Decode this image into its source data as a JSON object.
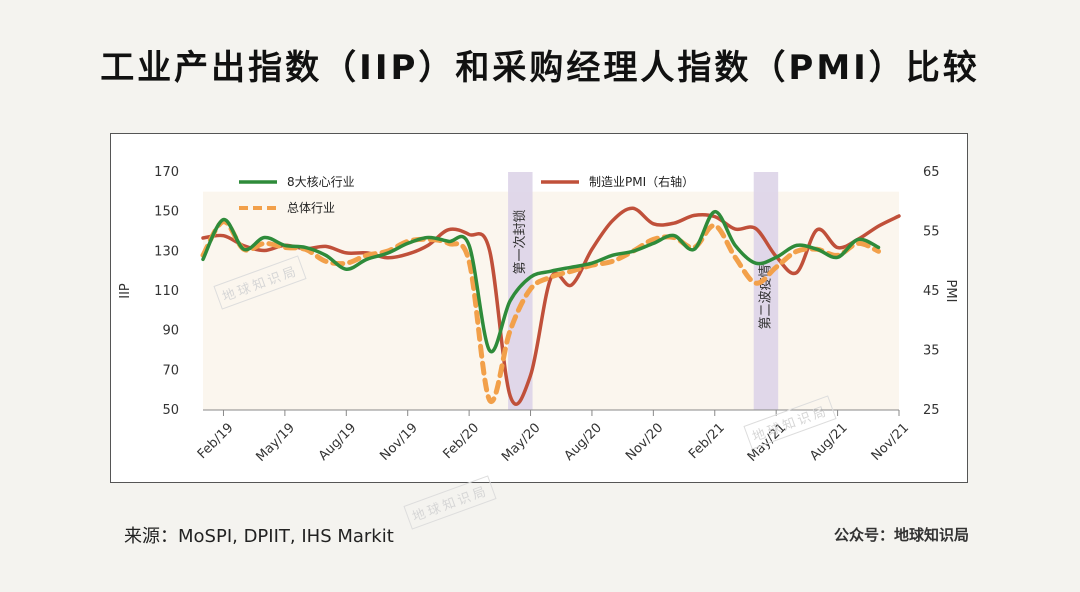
{
  "page": {
    "title": "工业产出指数（IIP）和采购经理人指数（PMI）比较",
    "source": "来源：MoSPI, DPIIT, IHS Markit",
    "account": "公众号：地球知识局",
    "watermark": "地球知识局"
  },
  "chart_data": {
    "type": "line",
    "x": [
      "Jan/19",
      "Feb/19",
      "Mar/19",
      "Apr/19",
      "May/19",
      "Jun/19",
      "Jul/19",
      "Aug/19",
      "Sep/19",
      "Oct/19",
      "Nov/19",
      "Dec/19",
      "Jan/20",
      "Feb/20",
      "Mar/20",
      "Apr/20",
      "May/20",
      "Jun/20",
      "Jul/20",
      "Aug/20",
      "Sep/20",
      "Oct/20",
      "Nov/20",
      "Dec/20",
      "Jan/21",
      "Feb/21",
      "Mar/21",
      "Apr/21",
      "May/21",
      "Jun/21",
      "Jul/21",
      "Aug/21",
      "Sep/21",
      "Oct/21",
      "Nov/21"
    ],
    "x_tick_labels": [
      "Feb/19",
      "May/19",
      "Aug/19",
      "Nov/19",
      "Feb/20",
      "May/20",
      "Aug/20",
      "Nov/20",
      "Feb/21",
      "May/21",
      "Aug/21",
      "Nov/21"
    ],
    "y_left": {
      "label": "IIP",
      "ticks": [
        50,
        70,
        90,
        110,
        130,
        150,
        170
      ],
      "range": [
        50,
        170
      ]
    },
    "y_right": {
      "label": "PMI",
      "ticks": [
        25,
        35,
        45,
        55,
        65
      ],
      "range": [
        25,
        65
      ]
    },
    "series": [
      {
        "name": "8大核心行业",
        "axis": "left",
        "color": "#2e8b3a",
        "style": "solid",
        "values": [
          126,
          146,
          131,
          137,
          133,
          132,
          128,
          121,
          126,
          129,
          134,
          137,
          135,
          133,
          80,
          105,
          117,
          120,
          122,
          124,
          128,
          130,
          134,
          138,
          131,
          150,
          133,
          124,
          127,
          133,
          131,
          127,
          136,
          132,
          null
        ]
      },
      {
        "name": "总体行业",
        "axis": "left",
        "color": "#f2a04a",
        "style": "dashed",
        "values": [
          128,
          145,
          131,
          134,
          132,
          131,
          125,
          124,
          128,
          130,
          135,
          136,
          134,
          125,
          55,
          90,
          111,
          117,
          120,
          123,
          125,
          130,
          136,
          137,
          132,
          143,
          127,
          114,
          122,
          130,
          131,
          128,
          134,
          130,
          null
        ]
      },
      {
        "name": "制造业PMI（右轴）",
        "axis": "right",
        "color": "#c0503a",
        "style": "solid",
        "values": [
          53.9,
          54.3,
          52.6,
          51.8,
          52.7,
          52.1,
          52.5,
          51.4,
          51.4,
          50.6,
          51.2,
          52.7,
          55.3,
          54.5,
          51.8,
          27.4,
          30.8,
          47.2,
          46.0,
          52.0,
          56.8,
          58.9,
          56.3,
          56.4,
          57.7,
          57.5,
          55.4,
          55.5,
          50.8,
          48.1,
          55.3,
          52.3,
          53.7,
          55.9,
          57.6
        ]
      }
    ],
    "shaded_periods": [
      {
        "label": "第一次封锁",
        "from": "Apr/20",
        "to": "May/20"
      },
      {
        "label": "第二波疫情",
        "from": "Apr/21",
        "to": "May/21"
      }
    ],
    "legend": "top-left and top-center, inside plot"
  }
}
